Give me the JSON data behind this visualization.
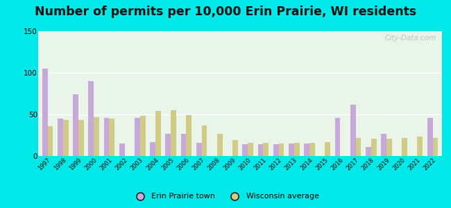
{
  "title": "Number of permits per 10,000 Erin Prairie, WI residents",
  "years": [
    1997,
    1998,
    1999,
    2000,
    2001,
    2002,
    2003,
    2004,
    2005,
    2006,
    2007,
    2008,
    2009,
    2010,
    2011,
    2012,
    2013,
    2014,
    2015,
    2016,
    2017,
    2018,
    2019,
    2020,
    2021,
    2022
  ],
  "erin_prairie": [
    105,
    45,
    74,
    90,
    46,
    15,
    46,
    17,
    27,
    27,
    16,
    0,
    0,
    14,
    14,
    14,
    15,
    15,
    0,
    46,
    62,
    11,
    27,
    0,
    0,
    46
  ],
  "wisconsin_avg": [
    36,
    43,
    43,
    47,
    45,
    0,
    48,
    54,
    55,
    49,
    37,
    27,
    19,
    16,
    16,
    15,
    16,
    16,
    17,
    0,
    22,
    21,
    21,
    22,
    23,
    22
  ],
  "erin_color": "#c8a8d8",
  "wisc_color": "#d0cc88",
  "bg_top": "#e8f5e8",
  "bg_bottom": "#f0f8f0",
  "outer_background": "#00e8e8",
  "ylim": [
    0,
    150
  ],
  "yticks": [
    0,
    50,
    100,
    150
  ],
  "title_fontsize": 12.5,
  "legend_erin": "Erin Prairie town",
  "legend_wisc": "Wisconsin average",
  "watermark_text": "City-Data.com"
}
